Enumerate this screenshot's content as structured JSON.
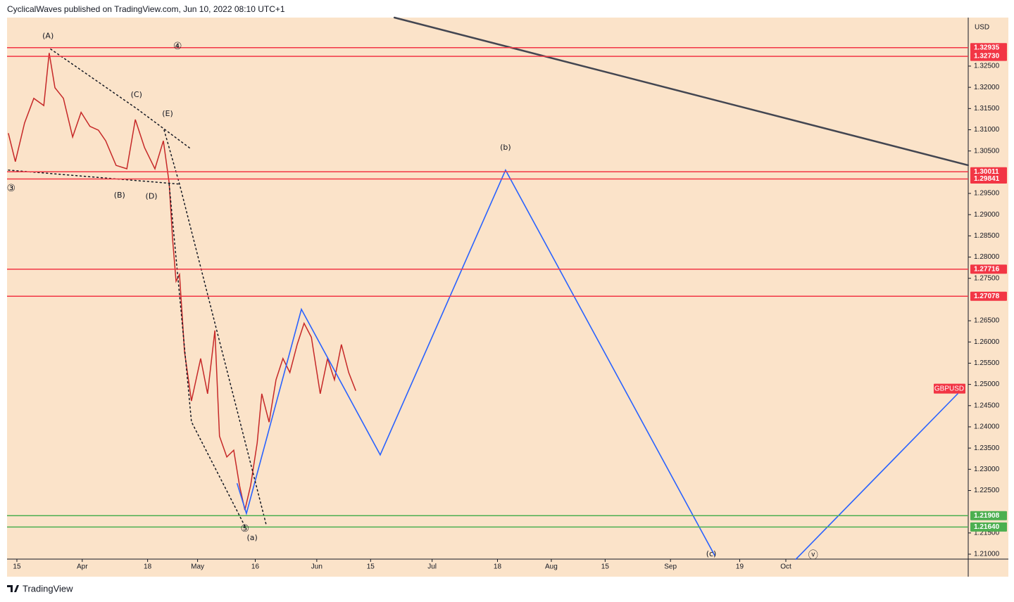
{
  "chart_data": {
    "type": "line",
    "header": "CyclicalWaves published on TradingView.com, Jun 10, 2022 08:10 UTC+1",
    "currency": "USD",
    "footer": "TradingView",
    "background": "#fbe3c9",
    "grid": false,
    "xlim": [
      71.44,
      321.44
    ],
    "xticks": [
      {
        "value": 74,
        "label": "15"
      },
      {
        "value": 91,
        "label": "Apr"
      },
      {
        "value": 108,
        "label": "18"
      },
      {
        "value": 121,
        "label": "May"
      },
      {
        "value": 136,
        "label": "16"
      },
      {
        "value": 152,
        "label": "Jun"
      },
      {
        "value": 166,
        "label": "15"
      },
      {
        "value": 182,
        "label": "Jul"
      },
      {
        "value": 199,
        "label": "18"
      },
      {
        "value": 213,
        "label": "Aug"
      },
      {
        "value": 227,
        "label": "15"
      },
      {
        "value": 244,
        "label": "Sep"
      },
      {
        "value": 262,
        "label": "19"
      },
      {
        "value": 274,
        "label": "Oct"
      }
    ],
    "ylim": [
      1.20884,
      1.33643
    ],
    "yticks": [
      {
        "value": 1.325,
        "label": "1.32500"
      },
      {
        "value": 1.32,
        "label": "1.32000"
      },
      {
        "value": 1.315,
        "label": "1.31500"
      },
      {
        "value": 1.31,
        "label": "1.31000"
      },
      {
        "value": 1.305,
        "label": "1.30500"
      },
      {
        "value": 1.295,
        "label": "1.29500"
      },
      {
        "value": 1.29,
        "label": "1.29000"
      },
      {
        "value": 1.285,
        "label": "1.28500"
      },
      {
        "value": 1.28,
        "label": "1.28000"
      },
      {
        "value": 1.275,
        "label": "1.27500"
      },
      {
        "value": 1.265,
        "label": "1.26500"
      },
      {
        "value": 1.26,
        "label": "1.26000"
      },
      {
        "value": 1.255,
        "label": "1.25500"
      },
      {
        "value": 1.25,
        "label": "1.25000"
      },
      {
        "value": 1.245,
        "label": "1.24500"
      },
      {
        "value": 1.24,
        "label": "1.24000"
      },
      {
        "value": 1.235,
        "label": "1.23500"
      },
      {
        "value": 1.23,
        "label": "1.23000"
      },
      {
        "value": 1.225,
        "label": "1.22500"
      },
      {
        "value": 1.215,
        "label": "1.21500"
      },
      {
        "value": 1.21,
        "label": "1.21000"
      }
    ],
    "levels": {
      "values": [
        1.32935,
        1.3273,
        1.30011,
        1.29841,
        1.27716,
        1.27078,
        1.21908,
        1.2164
      ],
      "value_labels": [
        "1.32935",
        "1.32730",
        "1.30011",
        "1.29841",
        "1.27716",
        "1.27078",
        "1.21908",
        "1.21640"
      ],
      "colors": [
        "#f23645",
        "#f23645",
        "#f23645",
        "#f23645",
        "#f23645",
        "#f23645",
        "#4caf50",
        "#4caf50"
      ]
    },
    "symbol_tag": {
      "label": "GBPUSD",
      "value": 1.249,
      "color": "#f23645"
    },
    "series": [
      {
        "color": "#c62828",
        "width": 1.5,
        "dash": false,
        "x": [
          71.8,
          73.6,
          76.0,
          78.4,
          81.0,
          82.4,
          83.9,
          86.1,
          88.5,
          90.7,
          93.0,
          95.2,
          97.1,
          99.8,
          102.6,
          104.8,
          107.2,
          109.9,
          112.1,
          113.6,
          114.5,
          115.4,
          116.3,
          117.6,
          119.4,
          121.8,
          123.6,
          125.5,
          126.7,
          128.6,
          130.4,
          131.9,
          133.3,
          134.8,
          136.5,
          137.7,
          139.6,
          141.4,
          143.2,
          145.0,
          146.9,
          148.7,
          150.6,
          152.9,
          154.8,
          156.6,
          158.4,
          160.3,
          162.1
        ],
        "values": [
          1.3091,
          1.3025,
          1.3116,
          1.3174,
          1.3157,
          1.3281,
          1.3199,
          1.3174,
          1.3083,
          1.3141,
          1.3108,
          1.3099,
          1.3074,
          1.3016,
          1.3008,
          1.3124,
          1.3058,
          1.3008,
          1.3074,
          1.2975,
          1.2842,
          1.2743,
          1.2759,
          1.2577,
          1.2461,
          1.2561,
          1.2478,
          1.2627,
          1.2378,
          1.2329,
          1.2345,
          1.2262,
          1.2204,
          1.2262,
          1.2362,
          1.2478,
          1.2411,
          1.2511,
          1.2561,
          1.2528,
          1.2594,
          1.2644,
          1.2611,
          1.2478,
          1.2561,
          1.2511,
          1.2594,
          1.2528,
          1.2486
        ]
      },
      {
        "color": "#2962ff",
        "width": 1.6,
        "dash": false,
        "x": [
          131.3,
          133.7,
          148.0,
          168.5,
          201.1,
          255.5,
          null,
          276.6,
          318.7
        ],
        "values": [
          1.2266,
          1.2196,
          1.2677,
          1.2334,
          1.3005,
          1.2097,
          null,
          1.2088,
          1.2478
        ]
      },
      {
        "color": "#434651",
        "width": 2.5,
        "dash": false,
        "x": [
          172.2,
          321.4
        ],
        "values": [
          1.33643,
          1.30164
        ]
      },
      {
        "color": "#131722",
        "width": 1.5,
        "dash": true,
        "x": [
          82.8,
          105.3,
          119.4
        ],
        "values": [
          1.329,
          1.3149,
          1.3054
        ]
      },
      {
        "color": "#131722",
        "width": 1.5,
        "dash": true,
        "x": [
          71.8,
          116.3
        ],
        "values": [
          1.3005,
          1.2972
        ]
      },
      {
        "color": "#131722",
        "width": 1.5,
        "dash": true,
        "x": [
          112.3,
          116.3,
          138.8
        ],
        "values": [
          1.3099,
          1.2972,
          1.2171
        ]
      },
      {
        "color": "#131722",
        "width": 1.5,
        "dash": true,
        "x": [
          113.6,
          119.4,
          133.3
        ],
        "values": [
          1.2972,
          1.2412,
          1.2166
        ]
      }
    ],
    "annotations": [
      {
        "text": "(A)",
        "x": 82.1,
        "y": 1.332
      },
      {
        "text": "④",
        "x": 115.8,
        "y": 1.3296
      },
      {
        "text": "(C)",
        "x": 105.1,
        "y": 1.3182
      },
      {
        "text": "(E)",
        "x": 113.2,
        "y": 1.3137
      },
      {
        "text": "③",
        "x": 72.5,
        "y": 1.2962
      },
      {
        "text": "(B)",
        "x": 100.7,
        "y": 1.2945
      },
      {
        "text": "(D)",
        "x": 109.0,
        "y": 1.2943
      },
      {
        "text": "⑤",
        "x": 133.3,
        "y": 1.216
      },
      {
        "text": "(a)",
        "x": 135.2,
        "y": 1.2138
      },
      {
        "text": "(b)",
        "x": 201.1,
        "y": 1.3058
      },
      {
        "text": "(c)",
        "x": 254.6,
        "y": 1.21
      },
      {
        "text": "ⓥ",
        "x": 281.1,
        "y": 1.2097
      }
    ]
  }
}
